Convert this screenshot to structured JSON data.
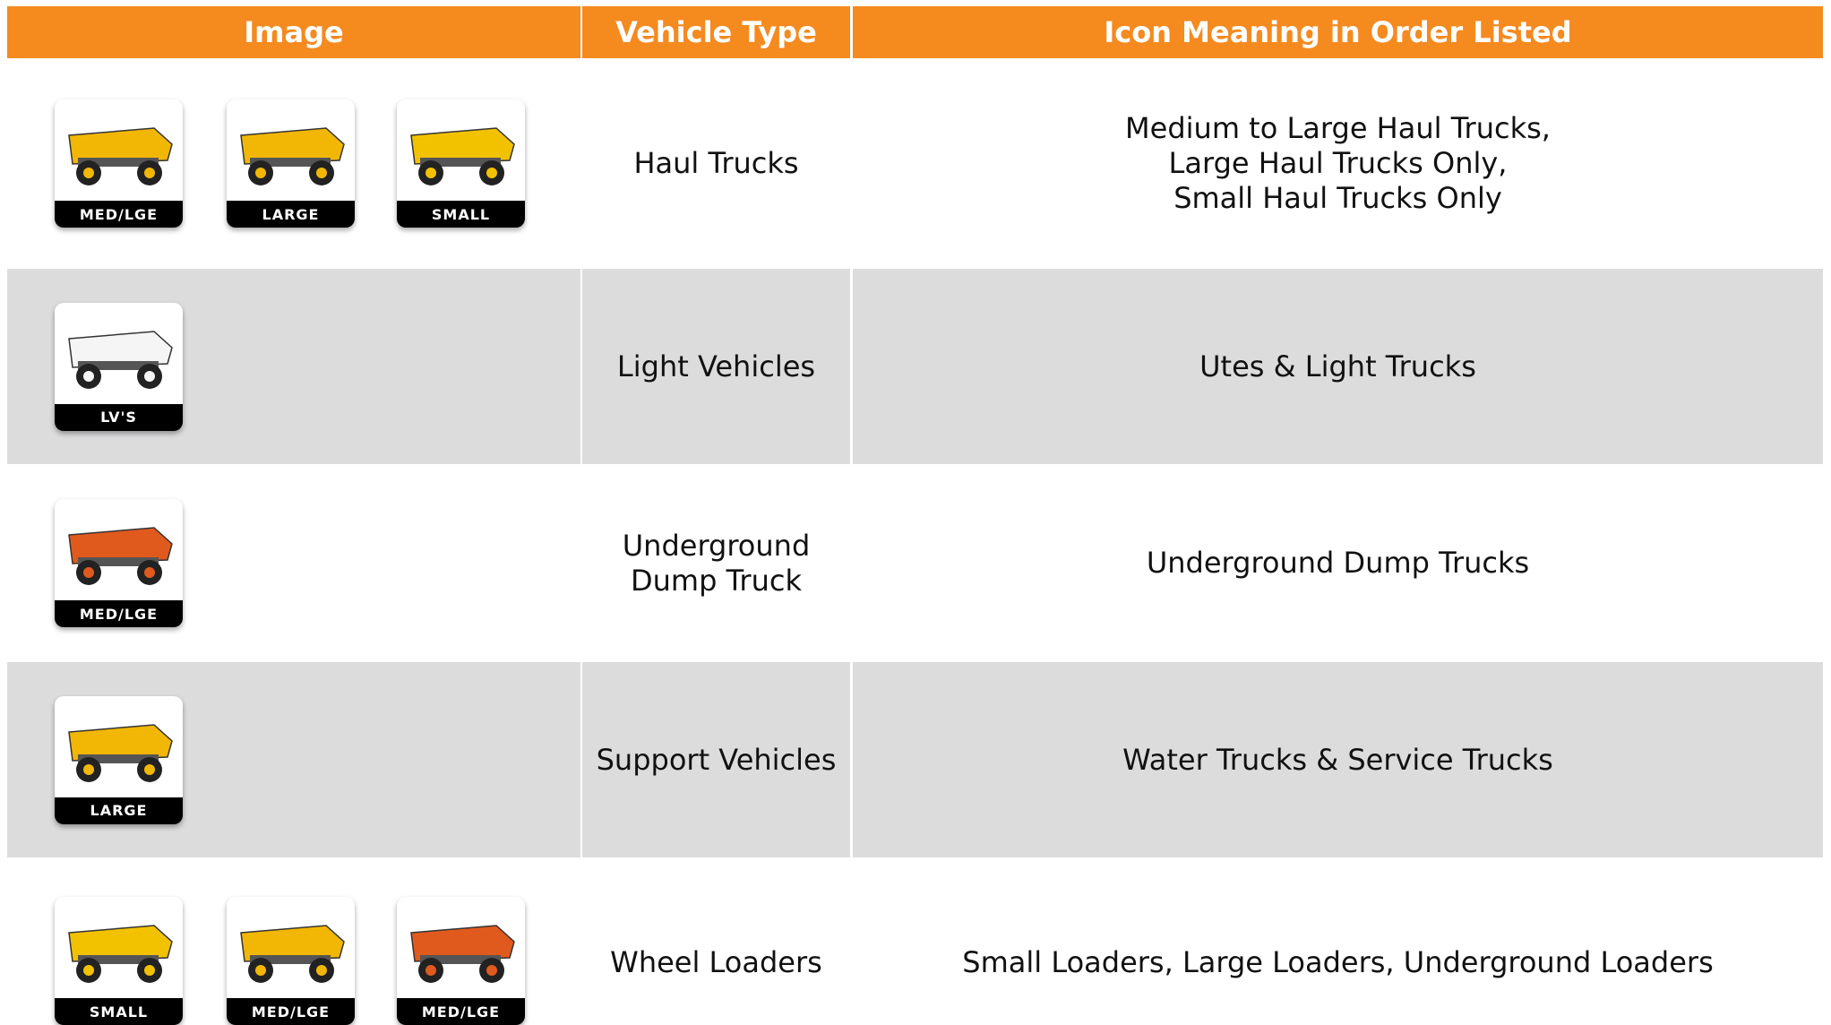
{
  "header": {
    "columns": [
      "Image",
      "Vehicle Type",
      "Icon Meaning in Order Listed"
    ]
  },
  "rows": [
    {
      "icons": [
        "MED/LGE",
        "LARGE",
        "SMALL"
      ],
      "vehicle_type": [
        "Haul Trucks"
      ],
      "meaning": [
        "Medium to Large Haul Trucks,",
        "Large Haul Trucks Only,",
        "Small Haul Trucks Only"
      ]
    },
    {
      "icons": [
        "LV'S"
      ],
      "vehicle_type": [
        "Light Vehicles"
      ],
      "meaning": [
        "Utes & Light Trucks"
      ]
    },
    {
      "icons": [
        "MED/LGE"
      ],
      "vehicle_type": [
        "Underground",
        "Dump Truck"
      ],
      "meaning": [
        "Underground Dump Trucks"
      ]
    },
    {
      "icons": [
        "LARGE"
      ],
      "vehicle_type": [
        "Support Vehicles"
      ],
      "meaning": [
        "Water Trucks & Service Trucks"
      ]
    },
    {
      "icons": [
        "SMALL",
        "MED/LGE",
        "MED/LGE"
      ],
      "vehicle_type": [
        "Wheel Loaders"
      ],
      "meaning": [
        "Small Loaders, Large Loaders, Underground Loaders"
      ]
    }
  ]
}
